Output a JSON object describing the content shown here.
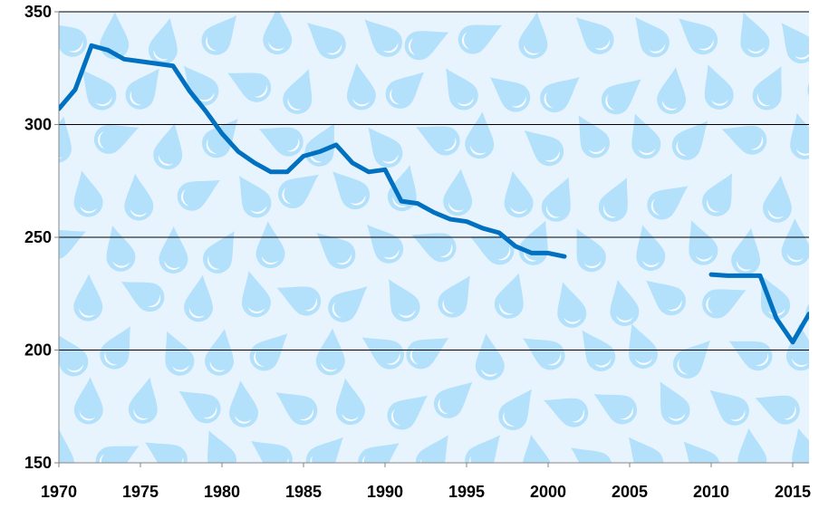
{
  "chart_data": {
    "type": "line",
    "title": "",
    "xlabel": "",
    "ylabel": "",
    "xlim": [
      1970,
      2016
    ],
    "ylim": [
      150,
      350
    ],
    "x_ticks": [
      1970,
      1975,
      1980,
      1985,
      1990,
      1995,
      2000,
      2005,
      2010,
      2015
    ],
    "y_ticks": [
      150,
      200,
      250,
      300,
      350
    ],
    "grid": "horizontal",
    "legend": "none",
    "background": "raindrop pattern",
    "colors": {
      "line": "#0070c0",
      "background": "#e8f4fd",
      "drops": "#b3e0fb",
      "grid": "#000000"
    },
    "series": [
      {
        "x": [
          1970,
          1971,
          1972,
          1973,
          1974,
          1975,
          1976,
          1977,
          1978,
          1979,
          1980,
          1981,
          1982,
          1983,
          1984,
          1985,
          1986,
          1987,
          1988,
          1989,
          1990,
          1991,
          1992,
          1993,
          1994,
          1995,
          1996,
          1997,
          1998,
          1999,
          2000,
          2001,
          2002,
          2003,
          2004,
          2005,
          2006,
          2007,
          2008,
          2009,
          2010,
          2011,
          2012,
          2013,
          2014,
          2015,
          2016
        ],
        "y": [
          307,
          315.5,
          335,
          333,
          329,
          328,
          327,
          326,
          315,
          306,
          296,
          288,
          283,
          279,
          279,
          286,
          288,
          291,
          283,
          279,
          280,
          266,
          265,
          261,
          258,
          257,
          254,
          252,
          246,
          243,
          243,
          241.5,
          null,
          null,
          null,
          null,
          null,
          null,
          null,
          null,
          233.5,
          233,
          233,
          233,
          214,
          203.5,
          216
        ]
      }
    ]
  }
}
